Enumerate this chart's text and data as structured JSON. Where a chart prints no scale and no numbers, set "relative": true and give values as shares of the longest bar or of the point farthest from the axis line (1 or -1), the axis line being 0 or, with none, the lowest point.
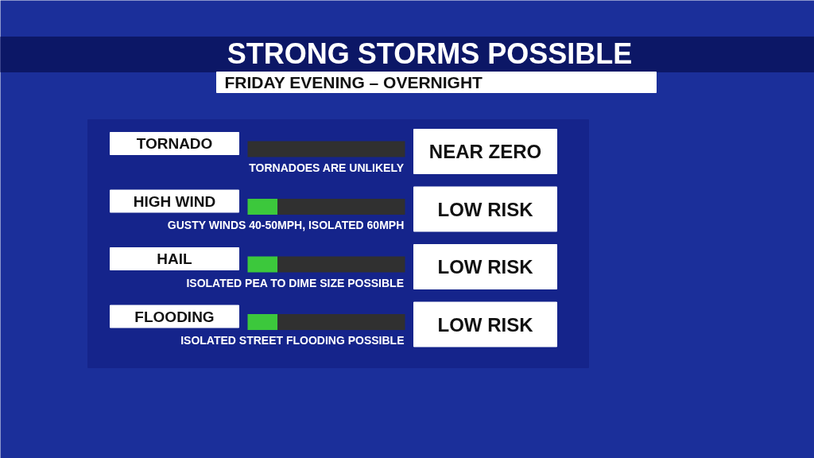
{
  "chart_data": {
    "type": "bar",
    "orientation": "horizontal",
    "relative": true,
    "stacked": true,
    "title": "STRONG STORMS POSSIBLE",
    "subtitle": "FRIDAY EVENING – OVERNIGHT",
    "categories": [
      "TORNADO",
      "HIGH WIND",
      "HAIL",
      "FLOODING"
    ],
    "series": [
      {
        "color": "#3cc83c",
        "values": [
          0,
          0.19,
          0.19,
          0.19
        ]
      },
      {
        "color": "#303030",
        "values": [
          1,
          0.81,
          0.81,
          0.81
        ]
      }
    ],
    "annotations": [
      "TORNADOES ARE UNLIKELY",
      "GUSTY WINDS 40-50MPH, ISOLATED 60MPH",
      "ISOLATED PEA TO DIME SIZE POSSIBLE",
      "ISOLATED STREET FLOODING POSSIBLE",
      "NEAR ZERO",
      "LOW RISK",
      "LOW RISK",
      "LOW RISK"
    ]
  }
}
